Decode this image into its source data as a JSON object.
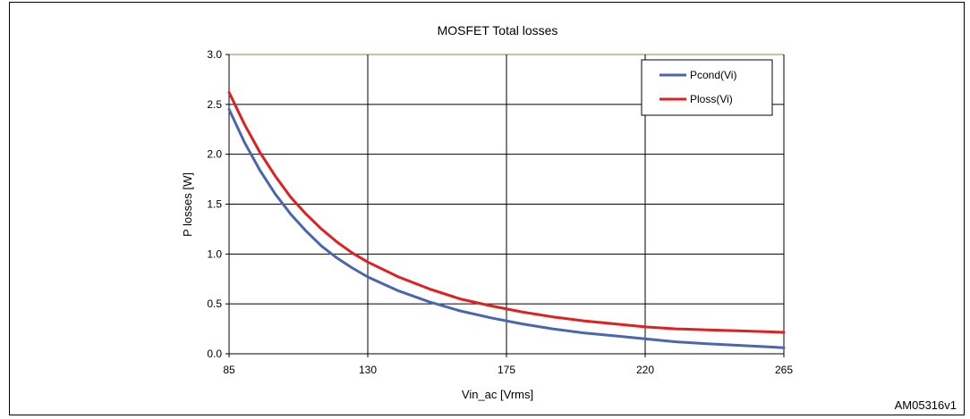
{
  "figure_id": "AM05316v1",
  "chart_data": {
    "type": "line",
    "title": "MOSFET Total losses",
    "xlabel": "Vin_ac [Vrms]",
    "ylabel": "P losses [W]",
    "xlim": [
      85,
      265
    ],
    "ylim": [
      0,
      3.0
    ],
    "xticks": [
      85,
      130,
      175,
      220,
      265
    ],
    "xtick_labels": [
      "85",
      "130",
      "175",
      "220",
      "265"
    ],
    "yticks": [
      0,
      0.5,
      1.0,
      1.5,
      2.0,
      2.5,
      3.0
    ],
    "ytick_labels": [
      "0.0",
      "0.5",
      "1.0",
      "1.5",
      "2.0",
      "2.5",
      "3.0"
    ],
    "grid": true,
    "legend_position": "top-right",
    "series": [
      {
        "name": "Pcond(Vi)",
        "color": "#4a66b0",
        "x": [
          85,
          90,
          95,
          100,
          105,
          110,
          115,
          120,
          125,
          130,
          140,
          150,
          160,
          170,
          180,
          190,
          200,
          210,
          220,
          230,
          240,
          250,
          260,
          265
        ],
        "y": [
          2.45,
          2.12,
          1.84,
          1.6,
          1.4,
          1.23,
          1.08,
          0.96,
          0.86,
          0.77,
          0.63,
          0.52,
          0.43,
          0.36,
          0.3,
          0.25,
          0.21,
          0.18,
          0.15,
          0.12,
          0.1,
          0.085,
          0.07,
          0.06
        ]
      },
      {
        "name": "Ploss(Vi)",
        "color": "#e02020",
        "x": [
          85,
          90,
          95,
          100,
          105,
          110,
          115,
          120,
          125,
          130,
          140,
          150,
          160,
          170,
          180,
          190,
          200,
          210,
          220,
          230,
          240,
          250,
          260,
          265
        ],
        "y": [
          2.62,
          2.3,
          2.02,
          1.78,
          1.57,
          1.4,
          1.25,
          1.12,
          1.01,
          0.92,
          0.77,
          0.65,
          0.55,
          0.48,
          0.42,
          0.37,
          0.33,
          0.3,
          0.27,
          0.25,
          0.24,
          0.23,
          0.22,
          0.215
        ]
      }
    ]
  }
}
